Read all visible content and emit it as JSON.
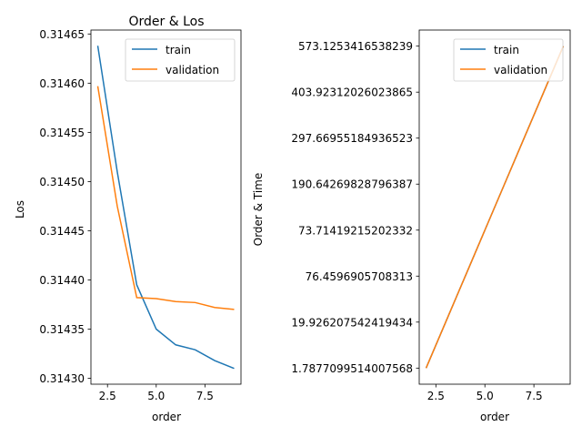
{
  "colors": {
    "train": "#1f77b4",
    "validation": "#ff7f0e",
    "axes": "#000000",
    "legend_border": "#cccccc"
  },
  "chart_data": [
    {
      "type": "line",
      "title": "Order & Los",
      "xlabel": "order",
      "ylabel": "Los",
      "xlim": [
        1.65,
        9.35
      ],
      "ylim": [
        0.314294,
        0.314654
      ],
      "xticks": [
        2.5,
        5.0,
        7.5
      ],
      "xtick_labels": [
        "2.5",
        "5.0",
        "7.5"
      ],
      "yticks": [
        0.3143,
        0.31435,
        0.3144,
        0.31445,
        0.3145,
        0.31455,
        0.3146,
        0.31465
      ],
      "ytick_labels": [
        "0.31430",
        "0.31435",
        "0.31440",
        "0.31445",
        "0.31450",
        "0.31455",
        "0.31460",
        "0.31465"
      ],
      "legend_position": "upper right",
      "grid": false,
      "x": [
        2,
        3,
        4,
        5,
        6,
        7,
        8,
        9
      ],
      "series": [
        {
          "name": "train",
          "values": [
            0.314638,
            0.31451,
            0.314395,
            0.31435,
            0.314334,
            0.314329,
            0.314318,
            0.31431
          ]
        },
        {
          "name": "validation",
          "values": [
            0.314597,
            0.314475,
            0.314382,
            0.314381,
            0.314378,
            0.314377,
            0.314372,
            0.31437
          ]
        }
      ]
    },
    {
      "type": "line",
      "title": "",
      "xlabel": "order",
      "ylabel": "Order & Time",
      "xlim": [
        1.65,
        9.35
      ],
      "ylim": [
        -0.35,
        7.35
      ],
      "xticks": [
        2.5,
        5.0,
        7.5
      ],
      "xtick_labels": [
        "2.5",
        "5.0",
        "7.5"
      ],
      "yticks": [
        0,
        1,
        2,
        3,
        4,
        5,
        6,
        7
      ],
      "ytick_labels": [
        "1.787709951400756​8",
        "19.926207542419434",
        "76.4596905708313",
        "73.71419215202332",
        "190.64269828796387",
        "297.66955184936523",
        "403.92312026023865",
        "573.1253416538239"
      ],
      "legend_position": "upper right",
      "grid": false,
      "x": [
        2,
        3,
        4,
        5,
        6,
        7,
        8,
        9
      ],
      "series": [
        {
          "name": "train",
          "values": [
            0,
            1,
            2,
            3,
            4,
            5,
            6,
            7
          ]
        },
        {
          "name": "validation",
          "values": [
            0,
            1,
            2,
            3,
            4,
            5,
            6,
            7
          ]
        }
      ]
    }
  ]
}
